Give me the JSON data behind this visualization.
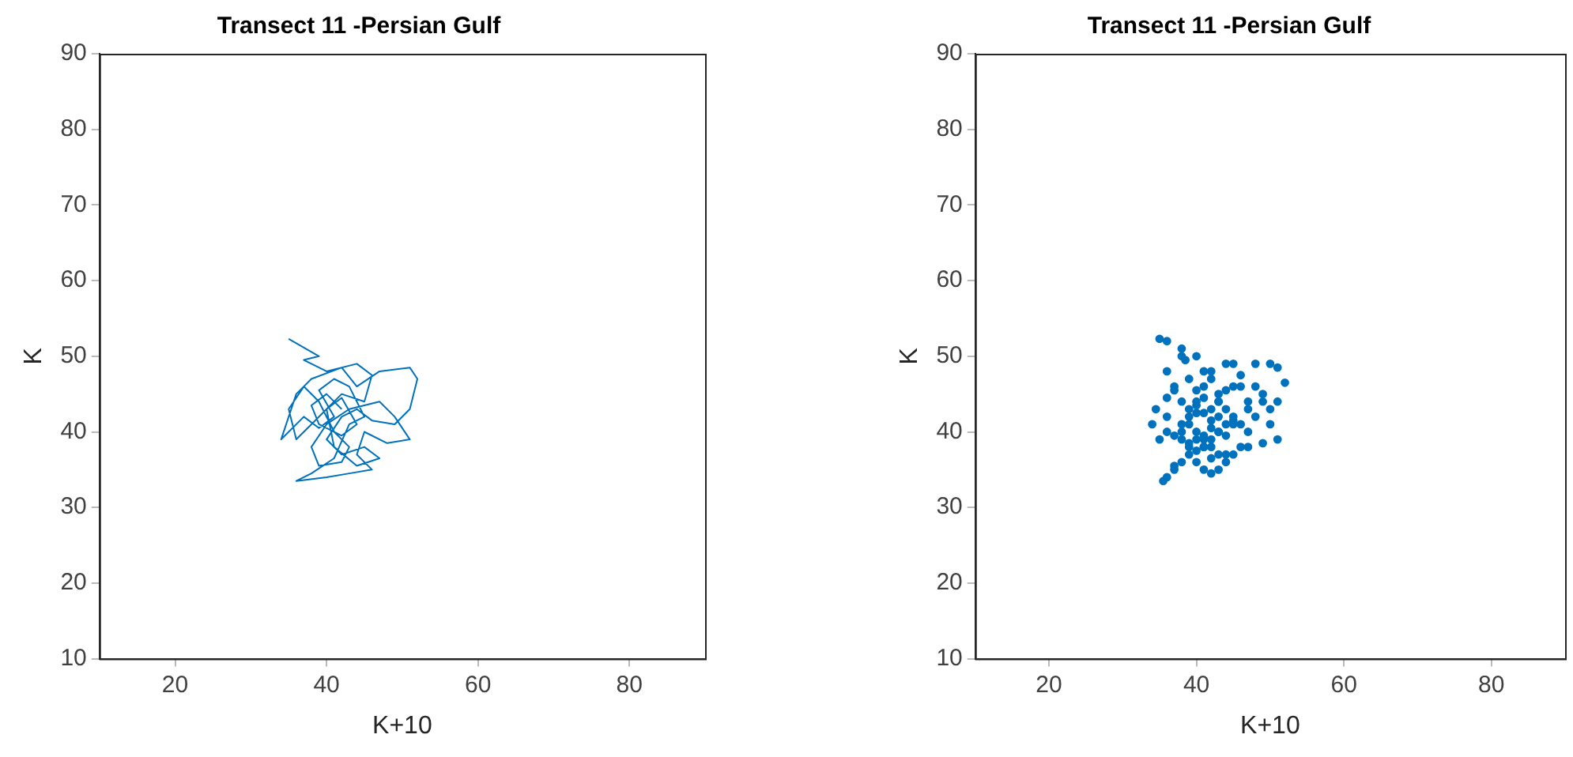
{
  "chart_data": [
    {
      "type": "line",
      "title": "Transect 11 -Persian Gulf",
      "xlabel": "K+10",
      "ylabel": "K",
      "color": "#0072bd",
      "line_style": "solid",
      "xlim": [
        10,
        90
      ],
      "ylim": [
        10,
        90
      ],
      "xticks": [
        20,
        40,
        60,
        80
      ],
      "yticks": [
        10,
        20,
        30,
        40,
        50,
        60,
        70,
        80,
        90
      ],
      "x": [
        35,
        39,
        37,
        40,
        44,
        46,
        45,
        42,
        40,
        38,
        36,
        35,
        37,
        39,
        41,
        43,
        42,
        39,
        38,
        40,
        43,
        47,
        49,
        51,
        48,
        45,
        44,
        46,
        43,
        40,
        36,
        38,
        41,
        43,
        45,
        43,
        41,
        39,
        41,
        39,
        37,
        34,
        36,
        38,
        42,
        44,
        47,
        51,
        52,
        51,
        49,
        46,
        44,
        42,
        40,
        42,
        45,
        47,
        44,
        41,
        40,
        42,
        44,
        42,
        39,
        38,
        40,
        42
      ],
      "values": [
        52.3,
        50,
        49.5,
        48,
        49,
        47.5,
        44,
        45,
        43,
        41,
        39,
        43,
        46,
        44,
        40,
        38,
        36,
        35.5,
        38,
        41,
        43,
        44,
        42,
        39,
        38.5,
        40,
        37,
        35,
        34.5,
        34,
        33.5,
        34.5,
        36.5,
        41,
        42,
        46,
        47,
        45.5,
        42,
        40.5,
        42,
        39,
        45,
        47,
        48.5,
        46,
        48,
        48.5,
        47,
        43,
        41,
        41.5,
        43,
        42,
        39,
        37,
        38,
        36.5,
        35.5,
        38,
        43,
        44.5,
        41,
        39.5,
        41,
        43.5,
        45,
        43
      ]
    },
    {
      "type": "scatter",
      "title": "Transect 11 -Persian Gulf",
      "xlabel": "K+10",
      "ylabel": "K",
      "color": "#0072bd",
      "marker": "circle",
      "xlim": [
        10,
        90
      ],
      "ylim": [
        10,
        90
      ],
      "xticks": [
        20,
        40,
        60,
        80
      ],
      "yticks": [
        10,
        20,
        30,
        40,
        50,
        60,
        70,
        80,
        90
      ],
      "x": [
        35,
        36,
        38,
        38.5,
        40,
        41,
        39,
        37,
        42,
        44,
        46,
        45,
        48,
        50,
        51,
        52,
        49,
        47,
        43,
        41,
        40,
        39,
        38,
        36,
        35,
        34,
        34.5,
        36,
        37,
        38,
        40,
        42,
        43,
        44,
        45,
        46,
        47,
        48,
        50,
        51,
        49,
        47,
        45,
        44,
        43,
        42,
        41,
        40,
        39,
        38,
        37,
        36,
        35.5,
        37,
        39,
        41,
        43,
        45,
        44,
        42,
        40,
        38,
        36,
        41,
        42,
        43,
        44,
        42,
        41,
        40,
        39,
        40,
        41,
        43,
        44,
        46,
        48,
        49,
        47,
        45,
        43,
        42,
        41,
        39,
        38,
        37,
        40,
        42,
        44,
        46,
        36,
        38,
        42,
        45,
        50,
        51,
        39,
        41,
        43,
        40
      ],
      "values": [
        52.3,
        52,
        51,
        49.5,
        50,
        48,
        47,
        46,
        48,
        49,
        47.5,
        46,
        49,
        49,
        48.5,
        46.5,
        45,
        44,
        45,
        46,
        44,
        43,
        41,
        40,
        39,
        41,
        43,
        44.5,
        45.5,
        44,
        42.5,
        43,
        44,
        43,
        42,
        41,
        40,
        42,
        41,
        39,
        38.5,
        38,
        37,
        36,
        35,
        34.5,
        35,
        36,
        37,
        36,
        35,
        34,
        33.5,
        35.5,
        38,
        39,
        40,
        41,
        39.5,
        38,
        39,
        40,
        42,
        42.5,
        41.5,
        42,
        41,
        40.5,
        39.5,
        40,
        42,
        43.5,
        44.5,
        44,
        45.5,
        46,
        46,
        44,
        43,
        41.5,
        40,
        39,
        38,
        38.5,
        39,
        39.5,
        37.5,
        36.5,
        37,
        38,
        48,
        50,
        47,
        49,
        43,
        44,
        41,
        38,
        37,
        45.5
      ]
    }
  ]
}
